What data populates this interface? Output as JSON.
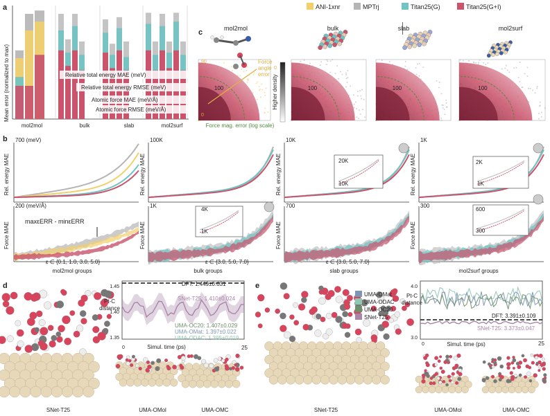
{
  "panel_labels": {
    "a": "a",
    "b": "b",
    "c": "c",
    "d": "d",
    "e": "e"
  },
  "colors": {
    "ani": "#f2cf6b",
    "mptrj": "#b5b5b5",
    "tg": "#6fc3c3",
    "tgi": "#c9546c",
    "uma_omat": "#7f95b5",
    "uma_odac": "#8fc7b5",
    "uma_oc20": "#6c8f6c",
    "snet": "#a985a8",
    "pt": "#e6d8b8",
    "o": "#d9435c",
    "h": "#eeeeee",
    "c": "#777777"
  },
  "legend": {
    "items": [
      {
        "label": "ANI-1xnr",
        "color": "#f2cf6b"
      },
      {
        "label": "MPTrj",
        "color": "#b5b5b5"
      },
      {
        "label": "Titan25(G)",
        "color": "#6fc3c3"
      },
      {
        "label": "Titan25(G+I)",
        "color": "#c9546c"
      }
    ]
  },
  "panel_a": {
    "ylabel": "Mean error (normalized to max)",
    "groups": [
      "mol2mol",
      "bulk",
      "slab",
      "mol2surf"
    ],
    "annotations": [
      "Relative total energy MAE (meV)",
      "Relative total energy RMSE (meV)",
      "Atomic force MAE (meV/Å)",
      "Atomic force RMSE (meV/Å)"
    ]
  },
  "panel_c": {
    "titles": [
      "mol2mol",
      "bulk",
      "slab",
      "mol2surf"
    ],
    "contour_label": "100",
    "angle_label": "Force\nangle\nerror",
    "angle_label_lines": [
      "Force",
      "angle",
      "error"
    ],
    "xlabel": "Force mag. error (log scale)",
    "colorbar_label": "Higher density",
    "tick_90": "90",
    "tick_0": "0",
    "tick_0b": "0"
  },
  "panel_b": {
    "energy_ylabel": "Rel. energy MAE",
    "force_ylabel": "Force MAE",
    "energy_tops": [
      "700 (meV)",
      "100K",
      "10K",
      "1K"
    ],
    "force_tops": [
      "200 (meV/Å)",
      "1K",
      "700",
      "300"
    ],
    "inset_ticks": {
      "slab_energy": [
        "20K",
        "10K"
      ],
      "surf_energy": [
        "2K",
        "1K"
      ],
      "bulk_force": [
        "4K",
        "1K"
      ],
      "surf_force": [
        "600",
        "300"
      ]
    },
    "xlabels": [
      "mol2mol groups",
      "bulk groups",
      "slab groups",
      "mol2surf groups"
    ],
    "eps": [
      "ε ∈ {0.1, 1.0, 3.0, 5.0}",
      "ε ∈ {3.0, 5.0, 7.0}",
      "ε ∈ {3.0, 5.0, 7.0}"
    ],
    "maxmin": "maxεERR - minεERR"
  },
  "panel_d": {
    "render_label": "SNet-T25",
    "sub_labels": [
      "UMA-OMol",
      "UMA-OMC"
    ],
    "ylabel": "Pt-C distance (Å)",
    "ylabel_lines": [
      "Pt-C",
      "distance"
    ],
    "yticks": [
      "1.45",
      "1.40",
      "1.35"
    ],
    "xlabel": "Simul. time (ps)",
    "xticks": [
      "0",
      "25"
    ],
    "dft": "DFT: 1.449±0.031",
    "snet": "SNet-T25: 1.410±0.024",
    "oc20": "UMA-OC20: 1.407±0.029",
    "omat": "UMA-OMat: 1.397±0.022",
    "odac": "UMA-ODAC: 1.395±0.019"
  },
  "panel_e": {
    "render_label": "SNet-T25",
    "sub_labels": [
      "UMA-OMol",
      "UMA-OMC"
    ],
    "legend": [
      "UMA-OMat",
      "UMA-ODAC",
      "UMA-OC20",
      "SNet-T25"
    ],
    "ylabel": "Pt-C distance (Å)",
    "ylabel_lines": [
      "Pt-C",
      "distance"
    ],
    "yticks": [
      "4.0",
      "3.0"
    ],
    "xlabel": "Simul. time (ps)",
    "xticks": [
      "0",
      "25"
    ],
    "dft": "DFT: 3.391±0.109",
    "snet": "SNet-T25: 3.373±0.047"
  }
}
